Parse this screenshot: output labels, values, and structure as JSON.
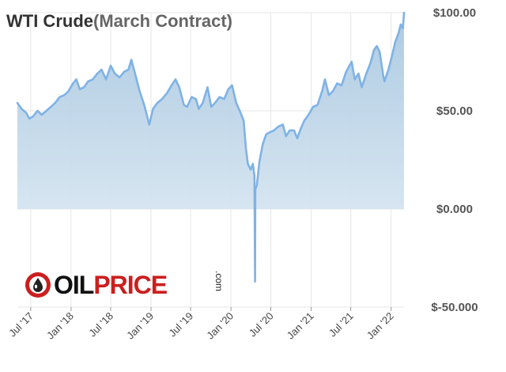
{
  "title_main": "WTI Crude",
  "title_sub": "(March Contract)",
  "logo": {
    "word_oil": "OIL",
    "word_price": "PRICE",
    "suffix": ".com"
  },
  "colors": {
    "line": "#7fb2e6",
    "fill_top": "#a9c8e0",
    "fill_bottom": "#e4eef6",
    "grid": "#e6e6e6",
    "logo_red": "#cc1e1e"
  },
  "chart_data": {
    "type": "area",
    "title": "WTI Crude(March Contract)",
    "xlabel": "",
    "ylabel": "",
    "ylim": [
      -50,
      100
    ],
    "grid": true,
    "yticks": [
      "$100.00",
      "$50.00",
      "$0.000",
      "$-50.000"
    ],
    "ytick_values": [
      100,
      50,
      0,
      -50
    ],
    "xticks": [
      "Jul '17",
      "Jan '18",
      "Jul '18",
      "Jan '19",
      "Jul '19",
      "Jan '20",
      "Jul '20",
      "Jan '21",
      "Jul '21",
      "Jan '22"
    ],
    "xtick_values": [
      "2017-07-01",
      "2018-01-01",
      "2018-07-01",
      "2019-01-01",
      "2019-07-01",
      "2020-01-01",
      "2020-07-01",
      "2021-01-01",
      "2021-07-01",
      "2022-01-01"
    ],
    "x_range": [
      "2017-05-01",
      "2022-03-01"
    ],
    "series": [
      {
        "points": [
          [
            "2017-05-01",
            54
          ],
          [
            "2017-05-20",
            51
          ],
          [
            "2017-06-10",
            49
          ],
          [
            "2017-06-25",
            46
          ],
          [
            "2017-07-10",
            47
          ],
          [
            "2017-08-01",
            50
          ],
          [
            "2017-08-20",
            48
          ],
          [
            "2017-09-10",
            50
          ],
          [
            "2017-10-01",
            52
          ],
          [
            "2017-10-20",
            54
          ],
          [
            "2017-11-10",
            57
          ],
          [
            "2017-12-01",
            58
          ],
          [
            "2017-12-20",
            60
          ],
          [
            "2018-01-10",
            64
          ],
          [
            "2018-01-25",
            66
          ],
          [
            "2018-02-10",
            61
          ],
          [
            "2018-03-01",
            62
          ],
          [
            "2018-03-20",
            65
          ],
          [
            "2018-04-10",
            66
          ],
          [
            "2018-05-01",
            69
          ],
          [
            "2018-05-20",
            71
          ],
          [
            "2018-06-10",
            66
          ],
          [
            "2018-07-01",
            73
          ],
          [
            "2018-07-20",
            69
          ],
          [
            "2018-08-10",
            67
          ],
          [
            "2018-09-01",
            70
          ],
          [
            "2018-09-20",
            71
          ],
          [
            "2018-10-03",
            76
          ],
          [
            "2018-10-20",
            69
          ],
          [
            "2018-11-10",
            60
          ],
          [
            "2018-12-01",
            53
          ],
          [
            "2018-12-24",
            43
          ],
          [
            "2019-01-10",
            51
          ],
          [
            "2019-01-30",
            54
          ],
          [
            "2019-02-20",
            56
          ],
          [
            "2019-03-15",
            59
          ],
          [
            "2019-04-05",
            63
          ],
          [
            "2019-04-23",
            66
          ],
          [
            "2019-05-10",
            62
          ],
          [
            "2019-05-31",
            53
          ],
          [
            "2019-06-15",
            52
          ],
          [
            "2019-07-05",
            57
          ],
          [
            "2019-07-25",
            56
          ],
          [
            "2019-08-07",
            51
          ],
          [
            "2019-08-25",
            54
          ],
          [
            "2019-09-16",
            62
          ],
          [
            "2019-10-03",
            52
          ],
          [
            "2019-10-20",
            54
          ],
          [
            "2019-11-10",
            57
          ],
          [
            "2019-12-01",
            56
          ],
          [
            "2019-12-20",
            61
          ],
          [
            "2020-01-06",
            63
          ],
          [
            "2020-01-25",
            54
          ],
          [
            "2020-02-10",
            50
          ],
          [
            "2020-02-28",
            45
          ],
          [
            "2020-03-09",
            31
          ],
          [
            "2020-03-18",
            23
          ],
          [
            "2020-03-31",
            20
          ],
          [
            "2020-04-10",
            23
          ],
          [
            "2020-04-17",
            17
          ],
          [
            "2020-04-20",
            -37
          ],
          [
            "2020-04-21",
            10
          ],
          [
            "2020-04-28",
            12
          ],
          [
            "2020-05-10",
            24
          ],
          [
            "2020-05-25",
            33
          ],
          [
            "2020-06-10",
            38
          ],
          [
            "2020-06-25",
            39
          ],
          [
            "2020-07-15",
            40
          ],
          [
            "2020-08-05",
            42
          ],
          [
            "2020-08-25",
            43
          ],
          [
            "2020-09-08",
            37
          ],
          [
            "2020-09-25",
            40
          ],
          [
            "2020-10-15",
            40
          ],
          [
            "2020-10-30",
            36
          ],
          [
            "2020-11-15",
            41
          ],
          [
            "2020-12-01",
            45
          ],
          [
            "2020-12-20",
            48
          ],
          [
            "2021-01-10",
            52
          ],
          [
            "2021-01-30",
            53
          ],
          [
            "2021-02-20",
            60
          ],
          [
            "2021-03-05",
            66
          ],
          [
            "2021-03-23",
            58
          ],
          [
            "2021-04-10",
            60
          ],
          [
            "2021-04-30",
            64
          ],
          [
            "2021-05-20",
            63
          ],
          [
            "2021-06-10",
            70
          ],
          [
            "2021-07-05",
            75
          ],
          [
            "2021-07-19",
            66
          ],
          [
            "2021-08-05",
            69
          ],
          [
            "2021-08-20",
            62
          ],
          [
            "2021-09-10",
            69
          ],
          [
            "2021-09-28",
            74
          ],
          [
            "2021-10-15",
            81
          ],
          [
            "2021-10-28",
            83
          ],
          [
            "2021-11-10",
            80
          ],
          [
            "2021-11-26",
            68
          ],
          [
            "2021-12-02",
            65
          ],
          [
            "2021-12-20",
            71
          ],
          [
            "2022-01-05",
            78
          ],
          [
            "2022-01-20",
            85
          ],
          [
            "2022-02-05",
            90
          ],
          [
            "2022-02-14",
            94
          ],
          [
            "2022-02-24",
            92
          ],
          [
            "2022-03-01",
            100
          ]
        ]
      }
    ]
  }
}
